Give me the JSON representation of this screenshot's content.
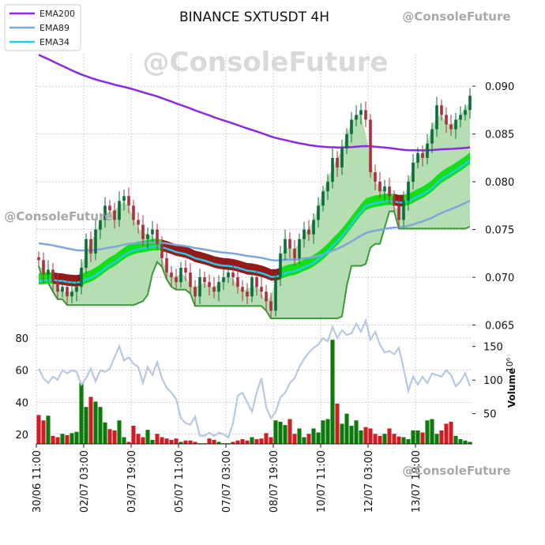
{
  "chart_data": {
    "type": "candlestick",
    "title": "BINANCE SXTUSDT 4H",
    "watermark": "@ConsoleFuture",
    "legend": {
      "placement": "top-left",
      "entries": [
        {
          "name": "EMA200",
          "color": "#8a2be2"
        },
        {
          "name": "EMA89",
          "color": "#7ea6d8"
        },
        {
          "name": "EMA34",
          "color": "#22ccee"
        }
      ]
    },
    "price_axis": {
      "side": "right",
      "range": [
        0.0648,
        0.0934
      ],
      "ticks": [
        "0.065",
        "0.070",
        "0.075",
        "0.080",
        "0.085",
        "0.090"
      ],
      "tick_values": [
        0.065,
        0.07,
        0.075,
        0.08,
        0.085,
        0.09
      ]
    },
    "volume_axis": {
      "side": "right",
      "label": "Volume",
      "exponent": "10⁶",
      "range": [
        5,
        172
      ],
      "ticks": [
        "50",
        "100",
        "150"
      ],
      "tick_values": [
        50,
        100,
        150
      ]
    },
    "indicator_axis": {
      "side": "left",
      "range": [
        14,
        84
      ],
      "ticks": [
        "20",
        "40",
        "60",
        "80"
      ],
      "tick_values": [
        20,
        40,
        60,
        80
      ]
    },
    "time_axis": {
      "ticks": [
        "30/06 11:00",
        "02/07 03:00",
        "03/07 19:00",
        "05/07 11:00",
        "07/07 03:00",
        "08/07 19:00",
        "10/07 11:00",
        "12/07 03:00",
        "13/07 19:00"
      ],
      "tick_index": [
        0,
        10,
        20,
        30,
        40,
        50,
        60,
        70,
        80
      ],
      "candle_count": 92
    },
    "colors": {
      "up": "#0a6e3c",
      "down": "#a8323e",
      "volume_up": "#0b7a0b",
      "volume_down": "#d01c24",
      "ema200": "#8a2be2",
      "ema89": "#7ea6d8",
      "ema34": "#22ccee",
      "cloud": "#a9d8a5",
      "cloud_edge": "#3a9a3a",
      "band_bull": "#00e000",
      "band_bear": "#8b0000",
      "indicator": "#b8c8e0",
      "grid": "#aaaaaa"
    },
    "closes": [
      0.0718,
      0.0703,
      0.0708,
      0.0695,
      0.0685,
      0.069,
      0.068,
      0.0685,
      0.069,
      0.071,
      0.074,
      0.0725,
      0.075,
      0.076,
      0.0775,
      0.077,
      0.076,
      0.078,
      0.0785,
      0.0775,
      0.076,
      0.0755,
      0.074,
      0.0745,
      0.075,
      0.0735,
      0.072,
      0.0705,
      0.07,
      0.0695,
      0.071,
      0.0705,
      0.069,
      0.068,
      0.07,
      0.0695,
      0.069,
      0.0685,
      0.0695,
      0.07,
      0.0705,
      0.07,
      0.069,
      0.0685,
      0.068,
      0.07,
      0.069,
      0.0685,
      0.0675,
      0.0665,
      0.07,
      0.0725,
      0.074,
      0.073,
      0.072,
      0.074,
      0.075,
      0.0745,
      0.076,
      0.0775,
      0.079,
      0.08,
      0.0825,
      0.0815,
      0.0835,
      0.085,
      0.0865,
      0.087,
      0.0875,
      0.0865,
      0.081,
      0.08,
      0.079,
      0.0795,
      0.0785,
      0.0775,
      0.076,
      0.078,
      0.08,
      0.082,
      0.083,
      0.0825,
      0.084,
      0.0855,
      0.088,
      0.087,
      0.086,
      0.0855,
      0.0865,
      0.087,
      0.0875,
      0.089
    ],
    "volume_millions": [
      48,
      40,
      47,
      17,
      15,
      20,
      18,
      21,
      23,
      96,
      60,
      75,
      68,
      60,
      37,
      27,
      25,
      40,
      15,
      8,
      32,
      20,
      15,
      26,
      11,
      20,
      15,
      13,
      11,
      13,
      8,
      10,
      10,
      8,
      6,
      6,
      13,
      11,
      8,
      6,
      6,
      8,
      10,
      12,
      10,
      15,
      12,
      13,
      21,
      15,
      40,
      38,
      33,
      42,
      20,
      28,
      15,
      20,
      28,
      22,
      40,
      42,
      160,
      65,
      35,
      50,
      32,
      40,
      25,
      30,
      28,
      20,
      17,
      20,
      28,
      20,
      16,
      15,
      12,
      25,
      25,
      22,
      40,
      42,
      20,
      25,
      35,
      38,
      17,
      12,
      10,
      8
    ],
    "indicator_line": [
      61,
      55,
      52,
      56,
      54,
      60,
      58,
      60,
      59,
      51,
      55,
      61,
      53,
      60,
      59,
      61,
      68,
      75,
      66,
      68,
      64,
      62,
      52,
      62,
      57,
      65,
      55,
      49,
      46,
      42,
      30,
      27,
      26,
      31,
      19,
      19,
      21,
      19,
      21,
      20,
      18,
      27,
      44,
      46,
      40,
      34,
      46,
      55,
      37,
      30,
      34,
      43,
      46,
      52,
      55,
      62,
      67,
      71,
      74,
      76,
      80,
      78,
      87,
      80,
      85,
      82,
      83,
      89,
      84,
      91,
      79,
      84,
      76,
      71,
      72,
      70,
      74,
      61,
      47,
      56,
      51,
      56,
      52,
      58,
      57,
      56,
      60,
      57,
      50,
      53,
      58,
      50
    ]
  }
}
